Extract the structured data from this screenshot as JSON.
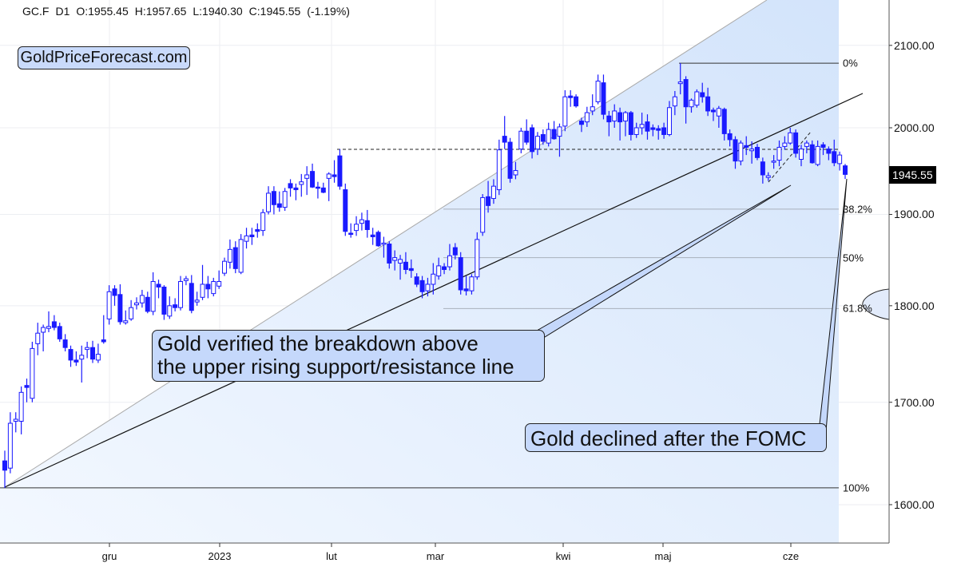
{
  "header": {
    "symbol": "GC.F",
    "timeframe": "D1",
    "open": "O:1955.45",
    "high": "H:1957.65",
    "low": "L:1940.30",
    "close": "C:1945.55",
    "change": "(-1.19%)"
  },
  "logo": "GoldPriceForecast.com",
  "annotations": {
    "callout1_line1": "Gold verified the breakdown above",
    "callout1_line2": "the upper rising support/resistance line",
    "callout2": "Gold declined after the FOMC"
  },
  "colors": {
    "candle": "#1a1aff",
    "fill_light": "#eef4fe",
    "fill_dark": "#d6e6fb",
    "callout": "#c5d8fb"
  },
  "chart_data": {
    "type": "candlestick",
    "yscale": "log",
    "ylim": [
      1550,
      2250
    ],
    "y_ticks": [
      "1600.00",
      "1700.00",
      "1800.00",
      "1900.00",
      "2000.00",
      "2100.00"
    ],
    "y_tick_values": [
      1600,
      1700,
      1800,
      1900,
      2000,
      2100
    ],
    "x_labels": [
      "gru",
      "2023",
      "lut",
      "mar",
      "kwi",
      "maj",
      "cze"
    ],
    "last_price": "1945.55",
    "fib_levels": [
      {
        "label": "0%",
        "price": 2078
      },
      {
        "label": "38.2%",
        "price": 1906
      },
      {
        "label": "50%",
        "price": 1852
      },
      {
        "label": "61.8%",
        "price": 1797
      },
      {
        "label": "100%",
        "price": 1616
      }
    ],
    "ohlc": [
      [
        1642,
        1652,
        1616,
        1633
      ],
      [
        1635,
        1690,
        1630,
        1679
      ],
      [
        1681,
        1690,
        1670,
        1683
      ],
      [
        1681,
        1716,
        1668,
        1710
      ],
      [
        1717,
        1724,
        1700,
        1715
      ],
      [
        1704,
        1762,
        1700,
        1755
      ],
      [
        1760,
        1782,
        1748,
        1771
      ],
      [
        1772,
        1780,
        1752,
        1777
      ],
      [
        1776,
        1794,
        1772,
        1778
      ],
      [
        1783,
        1790,
        1774,
        1777
      ],
      [
        1778,
        1782,
        1762,
        1765
      ],
      [
        1764,
        1770,
        1752,
        1756
      ],
      [
        1754,
        1758,
        1736,
        1743
      ],
      [
        1743,
        1752,
        1737,
        1741
      ],
      [
        1744,
        1758,
        1720,
        1748
      ],
      [
        1754,
        1762,
        1745,
        1756
      ],
      [
        1756,
        1763,
        1740,
        1744
      ],
      [
        1743,
        1760,
        1740,
        1749
      ],
      [
        1764,
        1790,
        1760,
        1762
      ],
      [
        1786,
        1822,
        1780,
        1815
      ],
      [
        1818,
        1822,
        1800,
        1811
      ],
      [
        1812,
        1823,
        1780,
        1783
      ],
      [
        1782,
        1795,
        1780,
        1784
      ],
      [
        1786,
        1806,
        1784,
        1798
      ],
      [
        1801,
        1809,
        1796,
        1803
      ],
      [
        1803,
        1817,
        1798,
        1811
      ],
      [
        1809,
        1815,
        1792,
        1794
      ],
      [
        1794,
        1836,
        1790,
        1826
      ],
      [
        1823,
        1828,
        1808,
        1820
      ],
      [
        1820,
        1822,
        1785,
        1791
      ],
      [
        1789,
        1810,
        1786,
        1800
      ],
      [
        1801,
        1808,
        1794,
        1798
      ],
      [
        1798,
        1832,
        1795,
        1826
      ],
      [
        1827,
        1832,
        1822,
        1829
      ],
      [
        1824,
        1833,
        1792,
        1795
      ],
      [
        1804,
        1815,
        1800,
        1806
      ],
      [
        1809,
        1844,
        1806,
        1823
      ],
      [
        1823,
        1832,
        1808,
        1818
      ],
      [
        1813,
        1830,
        1810,
        1826
      ],
      [
        1821,
        1838,
        1818,
        1826
      ],
      [
        1835,
        1852,
        1832,
        1848
      ],
      [
        1847,
        1872,
        1840,
        1861
      ],
      [
        1863,
        1870,
        1835,
        1840
      ],
      [
        1836,
        1878,
        1834,
        1872
      ],
      [
        1870,
        1885,
        1862,
        1876
      ],
      [
        1877,
        1885,
        1866,
        1875
      ],
      [
        1883,
        1890,
        1874,
        1881
      ],
      [
        1882,
        1906,
        1876,
        1902
      ],
      [
        1903,
        1932,
        1900,
        1924
      ],
      [
        1926,
        1932,
        1900,
        1911
      ],
      [
        1912,
        1926,
        1903,
        1908
      ],
      [
        1908,
        1930,
        1904,
        1926
      ],
      [
        1935,
        1940,
        1920,
        1930
      ],
      [
        1930,
        1935,
        1916,
        1928
      ],
      [
        1934,
        1946,
        1920,
        1937
      ],
      [
        1941,
        1955,
        1922,
        1945
      ],
      [
        1949,
        1958,
        1930,
        1931
      ],
      [
        1931,
        1937,
        1918,
        1930
      ],
      [
        1930,
        1936,
        1924,
        1925
      ],
      [
        1941,
        1948,
        1915,
        1946
      ],
      [
        1945,
        1962,
        1936,
        1943
      ],
      [
        1967,
        1975,
        1928,
        1932
      ],
      [
        1928,
        1935,
        1876,
        1881
      ],
      [
        1879,
        1890,
        1874,
        1878
      ],
      [
        1882,
        1898,
        1876,
        1889
      ],
      [
        1890,
        1902,
        1882,
        1894
      ],
      [
        1893,
        1905,
        1874,
        1883
      ],
      [
        1877,
        1885,
        1866,
        1875
      ],
      [
        1880,
        1882,
        1864,
        1865
      ],
      [
        1867,
        1875,
        1852,
        1868
      ],
      [
        1867,
        1870,
        1840,
        1846
      ],
      [
        1849,
        1860,
        1838,
        1852
      ],
      [
        1846,
        1855,
        1828,
        1850
      ],
      [
        1847,
        1858,
        1834,
        1839
      ],
      [
        1840,
        1850,
        1830,
        1838
      ],
      [
        1831,
        1835,
        1820,
        1823
      ],
      [
        1827,
        1832,
        1808,
        1815
      ],
      [
        1816,
        1830,
        1810,
        1823
      ],
      [
        1823,
        1846,
        1812,
        1834
      ],
      [
        1832,
        1852,
        1828,
        1843
      ],
      [
        1842,
        1846,
        1834,
        1839
      ],
      [
        1842,
        1867,
        1838,
        1854
      ],
      [
        1863,
        1868,
        1850,
        1855
      ],
      [
        1852,
        1858,
        1812,
        1817
      ],
      [
        1818,
        1832,
        1811,
        1816
      ],
      [
        1816,
        1834,
        1812,
        1831
      ],
      [
        1831,
        1880,
        1828,
        1872
      ],
      [
        1880,
        1923,
        1876,
        1919
      ],
      [
        1920,
        1938,
        1902,
        1910
      ],
      [
        1918,
        1940,
        1912,
        1932
      ],
      [
        1928,
        1986,
        1922,
        1974
      ],
      [
        1990,
        2014,
        1975,
        1983
      ],
      [
        1983,
        1988,
        1936,
        1941
      ],
      [
        1945,
        1960,
        1940,
        1950
      ],
      [
        1975,
        2000,
        1970,
        1996
      ],
      [
        1996,
        2010,
        1980,
        1983
      ],
      [
        2000,
        2004,
        1964,
        1972
      ],
      [
        1975,
        1995,
        1968,
        1990
      ],
      [
        1992,
        1998,
        1980,
        1984
      ],
      [
        1982,
        2006,
        1978,
        1998
      ],
      [
        1998,
        2008,
        1986,
        1987
      ],
      [
        1990,
        2005,
        1966,
        2001
      ],
      [
        2002,
        2045,
        1996,
        2037
      ],
      [
        2038,
        2045,
        2025,
        2036
      ],
      [
        2037,
        2040,
        2024,
        2026
      ],
      [
        2008,
        2012,
        1995,
        2004
      ],
      [
        2007,
        2025,
        2001,
        2018
      ],
      [
        2020,
        2040,
        2015,
        2025
      ],
      [
        2031,
        2064,
        2028,
        2056
      ],
      [
        2054,
        2064,
        2010,
        2016
      ],
      [
        2014,
        2020,
        1990,
        2007
      ],
      [
        2008,
        2028,
        2000,
        2020
      ],
      [
        2018,
        2024,
        1985,
        2007
      ],
      [
        2008,
        2020,
        1990,
        2018
      ],
      [
        2018,
        2020,
        1985,
        1992
      ],
      [
        1992,
        2006,
        1988,
        2000
      ],
      [
        2000,
        2018,
        1992,
        2004
      ],
      [
        2007,
        2016,
        1986,
        1996
      ],
      [
        2000,
        2004,
        1990,
        1998
      ],
      [
        1999,
        2003,
        1986,
        1997
      ],
      [
        2000,
        2006,
        1987,
        1992
      ],
      [
        1992,
        2032,
        1990,
        2024
      ],
      [
        2026,
        2044,
        2015,
        2037
      ],
      [
        2053,
        2078,
        2040,
        2055
      ],
      [
        2058,
        2062,
        2005,
        2025
      ],
      [
        2025,
        2035,
        2018,
        2033
      ],
      [
        2027,
        2046,
        2024,
        2043
      ],
      [
        2042,
        2054,
        2030,
        2037
      ],
      [
        2037,
        2048,
        2014,
        2020
      ],
      [
        2021,
        2024,
        2008,
        2019
      ],
      [
        2014,
        2026,
        2000,
        2023
      ],
      [
        2022,
        2024,
        1985,
        1993
      ],
      [
        1993,
        1998,
        1978,
        1986
      ],
      [
        1986,
        1990,
        1952,
        1961
      ],
      [
        1961,
        1985,
        1956,
        1982
      ],
      [
        1979,
        1990,
        1968,
        1977
      ],
      [
        1973,
        1984,
        1958,
        1975
      ],
      [
        1977,
        1981,
        1962,
        1965
      ],
      [
        1960,
        1965,
        1935,
        1945
      ],
      [
        1942,
        1948,
        1938,
        1944
      ],
      [
        1960,
        1968,
        1952,
        1961
      ],
      [
        1962,
        1985,
        1955,
        1977
      ],
      [
        1978,
        1990,
        1974,
        1982
      ],
      [
        1982,
        2000,
        1980,
        1994
      ],
      [
        1994,
        1998,
        1965,
        1970
      ],
      [
        1963,
        1980,
        1955,
        1975
      ],
      [
        1978,
        1985,
        1970,
        1982
      ],
      [
        1980,
        1985,
        1958,
        1959
      ],
      [
        1957,
        1985,
        1955,
        1978
      ],
      [
        1980,
        1983,
        1968,
        1977
      ],
      [
        1975,
        1978,
        1962,
        1970
      ],
      [
        1972,
        1986,
        1955,
        1959
      ],
      [
        1958,
        1972,
        1950,
        1968
      ],
      [
        1955.45,
        1957.65,
        1940.3,
        1945.55
      ]
    ]
  }
}
